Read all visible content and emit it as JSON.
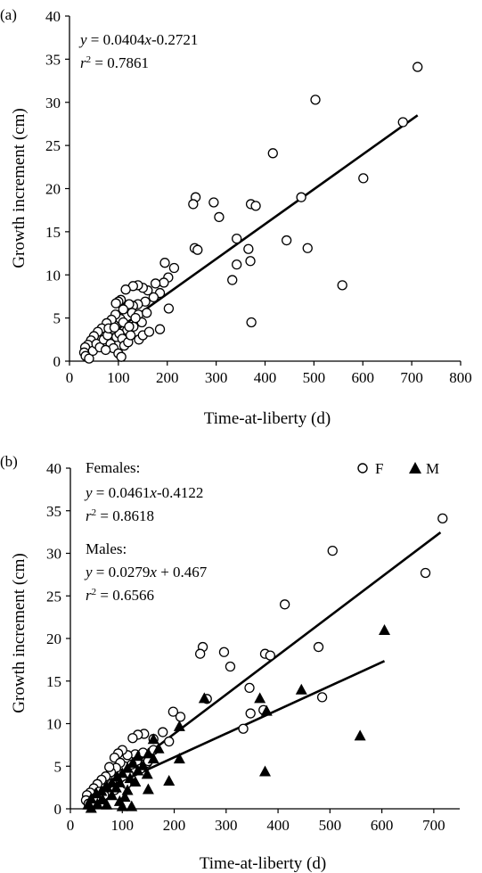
{
  "chart_data": [
    {
      "type": "scatter",
      "panel_label": "(a)",
      "xlabel": "Time-at-liberty (d)",
      "ylabel": "Growth increment (cm)",
      "xlim": [
        0,
        800
      ],
      "ylim": [
        0,
        40
      ],
      "xticks": [
        0,
        100,
        200,
        300,
        400,
        500,
        600,
        700,
        800
      ],
      "yticks": [
        0,
        5,
        10,
        15,
        20,
        25,
        30,
        35,
        40
      ],
      "grid": false,
      "annotations": [
        "y = 0.0404x-0.2721",
        "r² = 0.7861"
      ],
      "fit_line": {
        "slope": 0.0404,
        "intercept": -0.2721,
        "x_range": [
          30,
          712
        ]
      },
      "series": [
        {
          "marker": "open-circle",
          "points": [
            [
              712,
              34.1
            ],
            [
              503,
              30.3
            ],
            [
              682,
              27.7
            ],
            [
              416,
              24.1
            ],
            [
              601,
              21.2
            ],
            [
              258,
              19.0
            ],
            [
              253,
              18.2
            ],
            [
              295,
              18.4
            ],
            [
              371,
              18.2
            ],
            [
              381,
              18.0
            ],
            [
              474,
              19.0
            ],
            [
              306,
              16.7
            ],
            [
              256,
              13.1
            ],
            [
              262,
              12.9
            ],
            [
              342,
              14.2
            ],
            [
              366,
              13.0
            ],
            [
              444,
              14.0
            ],
            [
              487,
              13.1
            ],
            [
              342,
              11.2
            ],
            [
              370,
              11.6
            ],
            [
              333,
              9.4
            ],
            [
              558,
              8.8
            ],
            [
              372,
              4.5
            ],
            [
              195,
              11.4
            ],
            [
              214,
              10.8
            ],
            [
              202,
              9.7
            ],
            [
              193,
              9.1
            ],
            [
              176,
              9.0
            ],
            [
              185,
              7.9
            ],
            [
              172,
              7.4
            ],
            [
              160,
              8.2
            ],
            [
              150,
              8.5
            ],
            [
              140,
              8.8
            ],
            [
              130,
              8.7
            ],
            [
              115,
              8.3
            ],
            [
              155,
              6.9
            ],
            [
              140,
              6.6
            ],
            [
              130,
              6.4
            ],
            [
              118,
              6.3
            ],
            [
              122,
              6.6
            ],
            [
              105,
              7.1
            ],
            [
              100,
              6.9
            ],
            [
              95,
              6.7
            ],
            [
              110,
              6.0
            ],
            [
              128,
              5.6
            ],
            [
              141,
              5.4
            ],
            [
              158,
              5.6
            ],
            [
              148,
              4.5
            ],
            [
              131,
              4.0
            ],
            [
              118,
              3.6
            ],
            [
              104,
              4.9
            ],
            [
              94,
              5.4
            ],
            [
              86,
              4.8
            ],
            [
              76,
              4.4
            ],
            [
              66,
              3.8
            ],
            [
              58,
              3.4
            ],
            [
              50,
              2.9
            ],
            [
              44,
              2.4
            ],
            [
              38,
              1.9
            ],
            [
              32,
              1.6
            ],
            [
              30,
              1.0
            ],
            [
              33,
              0.6
            ],
            [
              40,
              0.3
            ],
            [
              48,
              1.2
            ],
            [
              55,
              2.0
            ],
            [
              62,
              1.6
            ],
            [
              70,
              2.5
            ],
            [
              78,
              3.0
            ],
            [
              84,
              2.0
            ],
            [
              90,
              1.5
            ],
            [
              96,
              2.8
            ],
            [
              102,
              3.2
            ],
            [
              108,
              2.6
            ],
            [
              100,
              0.9
            ],
            [
              106,
              0.5
            ],
            [
              112,
              1.8
            ],
            [
              120,
              2.2
            ],
            [
              125,
              3.0
            ],
            [
              142,
              2.5
            ],
            [
              150,
              3.0
            ],
            [
              163,
              3.4
            ],
            [
              185,
              3.7
            ],
            [
              203,
              6.1
            ],
            [
              88,
              3.7
            ],
            [
              74,
              1.3
            ],
            [
              80,
              3.8
            ],
            [
              110,
              4.5
            ],
            [
              122,
              4.0
            ],
            [
              92,
              3.9
            ],
            [
              135,
              5.0
            ]
          ]
        }
      ]
    },
    {
      "type": "scatter",
      "panel_label": "(b)",
      "xlabel": "Time-at-liberty (d)",
      "ylabel": "Growth increment (cm)",
      "xlim": [
        0,
        750
      ],
      "ylim": [
        0,
        40
      ],
      "xticks": [
        0,
        100,
        200,
        300,
        400,
        500,
        600,
        700
      ],
      "yticks": [
        0,
        5,
        10,
        15,
        20,
        25,
        30,
        35,
        40
      ],
      "grid": false,
      "legend": {
        "placement": "top-right",
        "entries": [
          "F",
          "M"
        ]
      },
      "annotations": [
        "Females:",
        "y = 0.0461x-0.4122",
        "r² = 0.8618",
        "Males:",
        "y = 0.0279x + 0.467",
        "r² = 0.6566"
      ],
      "fit_lines": [
        {
          "series": "F",
          "slope": 0.0461,
          "intercept": -0.4122,
          "x_range": [
            30,
            713
          ]
        },
        {
          "series": "M",
          "slope": 0.0279,
          "intercept": 0.467,
          "x_range": [
            30,
            605
          ]
        }
      ],
      "series": [
        {
          "name": "F",
          "marker": "open-circle",
          "points": [
            [
              717,
              34.1
            ],
            [
              505,
              30.3
            ],
            [
              684,
              27.7
            ],
            [
              413,
              24.0
            ],
            [
              255,
              19.0
            ],
            [
              250,
              18.2
            ],
            [
              296,
              18.4
            ],
            [
              375,
              18.2
            ],
            [
              385,
              18.0
            ],
            [
              478,
              19.0
            ],
            [
              308,
              16.7
            ],
            [
              263,
              12.9
            ],
            [
              345,
              14.2
            ],
            [
              333,
              9.4
            ],
            [
              347,
              11.2
            ],
            [
              372,
              11.6
            ],
            [
              485,
              13.1
            ],
            [
              198,
              11.4
            ],
            [
              212,
              10.8
            ],
            [
              178,
              9.0
            ],
            [
              190,
              7.9
            ],
            [
              160,
              8.2
            ],
            [
              142,
              8.8
            ],
            [
              130,
              8.7
            ],
            [
              120,
              8.3
            ],
            [
              160,
              6.9
            ],
            [
              140,
              6.6
            ],
            [
              125,
              6.4
            ],
            [
              110,
              6.3
            ],
            [
              100,
              6.9
            ],
            [
              92,
              6.5
            ],
            [
              85,
              6.0
            ],
            [
              128,
              5.6
            ],
            [
              148,
              5.4
            ],
            [
              104,
              5.0
            ],
            [
              96,
              5.4
            ],
            [
              88,
              4.8
            ],
            [
              78,
              4.3
            ],
            [
              68,
              3.8
            ],
            [
              60,
              3.4
            ],
            [
              52,
              2.9
            ],
            [
              45,
              2.4
            ],
            [
              38,
              1.9
            ],
            [
              32,
              1.6
            ],
            [
              30,
              1.0
            ],
            [
              35,
              0.6
            ],
            [
              42,
              0.4
            ],
            [
              55,
              2.0
            ],
            [
              65,
              1.6
            ],
            [
              72,
              2.5
            ],
            [
              80,
              3.0
            ],
            [
              100,
              3.6
            ],
            [
              112,
              4.1
            ],
            [
              118,
              5.2
            ],
            [
              135,
              4.7
            ],
            [
              150,
              5.6
            ],
            [
              75,
              4.9
            ],
            [
              48,
              1.3
            ],
            [
              85,
              2.2
            ],
            [
              108,
              2.9
            ]
          ]
        },
        {
          "name": "M",
          "marker": "filled-triangle",
          "points": [
            [
              605,
              21.0
            ],
            [
              258,
              13.0
            ],
            [
              445,
              14.0
            ],
            [
              365,
              13.0
            ],
            [
              378,
              11.5
            ],
            [
              558,
              8.6
            ],
            [
              375,
              4.4
            ],
            [
              210,
              9.7
            ],
            [
              210,
              5.9
            ],
            [
              190,
              3.3
            ],
            [
              160,
              8.2
            ],
            [
              150,
              6.5
            ],
            [
              148,
              4.1
            ],
            [
              150,
              2.3
            ],
            [
              170,
              7.1
            ],
            [
              130,
              6.2
            ],
            [
              120,
              5.4
            ],
            [
              110,
              4.8
            ],
            [
              100,
              4.2
            ],
            [
              90,
              3.8
            ],
            [
              80,
              3.1
            ],
            [
              70,
              2.6
            ],
            [
              60,
              2.1
            ],
            [
              50,
              1.8
            ],
            [
              40,
              1.2
            ],
            [
              34,
              0.5
            ],
            [
              40,
              0.1
            ],
            [
              52,
              0.6
            ],
            [
              62,
              1.1
            ],
            [
              70,
              0.5
            ],
            [
              80,
              1.6
            ],
            [
              88,
              2.5
            ],
            [
              95,
              0.9
            ],
            [
              100,
              0.3
            ],
            [
              110,
              2.2
            ],
            [
              118,
              0.3
            ],
            [
              105,
              1.4
            ],
            [
              125,
              3.2
            ],
            [
              140,
              5.1
            ],
            [
              160,
              5.9
            ],
            [
              130,
              4.5
            ],
            [
              95,
              3.1
            ],
            [
              115,
              3.6
            ]
          ]
        }
      ]
    }
  ]
}
